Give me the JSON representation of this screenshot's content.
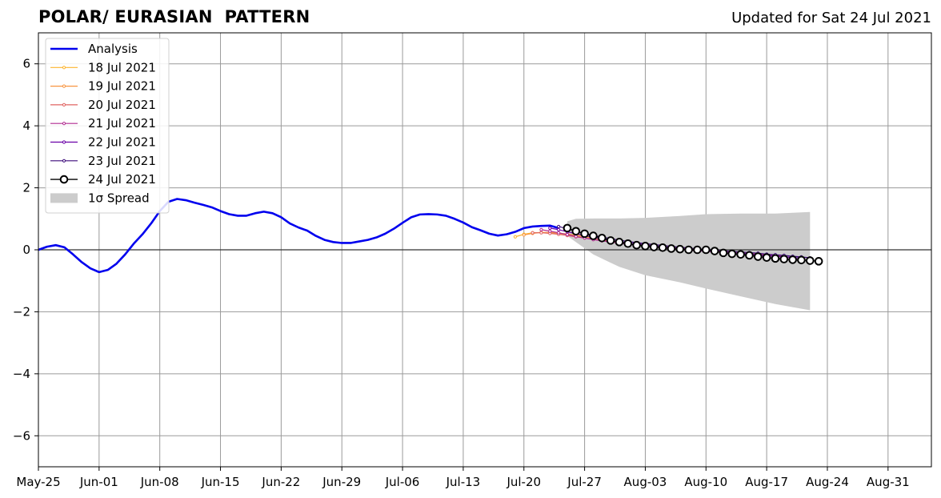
{
  "header": {
    "title": "POLAR/ EURASIAN  PATTERN",
    "updated": "Updated for Sat 24 Jul 2021"
  },
  "chart_data": {
    "type": "line",
    "title": "POLAR/ EURASIAN  PATTERN",
    "xlabel": "",
    "ylabel": "",
    "xlim": [
      "2021-05-25",
      "2021-09-05"
    ],
    "ylim": [
      -7,
      7
    ],
    "grid": true,
    "legend_position": "top-left",
    "x_ticks": [
      "May-25",
      "Jun-01",
      "Jun-08",
      "Jun-15",
      "Jun-22",
      "Jun-29",
      "Jul-06",
      "Jul-13",
      "Jul-20",
      "Jul-27",
      "Aug-03",
      "Aug-10",
      "Aug-17",
      "Aug-24",
      "Aug-31"
    ],
    "y_ticks": [
      "6",
      "4",
      "2",
      "0",
      "−2",
      "−4",
      "−6"
    ],
    "analysis": {
      "name": "Analysis",
      "color": "#0000ee",
      "x": [
        "2021-05-25",
        "2021-05-26",
        "2021-05-27",
        "2021-05-28",
        "2021-05-29",
        "2021-05-30",
        "2021-05-31",
        "2021-06-01",
        "2021-06-02",
        "2021-06-03",
        "2021-06-04",
        "2021-06-05",
        "2021-06-06",
        "2021-06-07",
        "2021-06-08",
        "2021-06-09",
        "2021-06-10",
        "2021-06-11",
        "2021-06-12",
        "2021-06-13",
        "2021-06-14",
        "2021-06-15",
        "2021-06-16",
        "2021-06-17",
        "2021-06-18",
        "2021-06-19",
        "2021-06-20",
        "2021-06-21",
        "2021-06-22",
        "2021-06-23",
        "2021-06-24",
        "2021-06-25",
        "2021-06-26",
        "2021-06-27",
        "2021-06-28",
        "2021-06-29",
        "2021-06-30",
        "2021-07-01",
        "2021-07-02",
        "2021-07-03",
        "2021-07-04",
        "2021-07-05",
        "2021-07-06",
        "2021-07-07",
        "2021-07-08",
        "2021-07-09",
        "2021-07-10",
        "2021-07-11",
        "2021-07-12",
        "2021-07-13",
        "2021-07-14",
        "2021-07-15",
        "2021-07-16",
        "2021-07-17",
        "2021-07-18",
        "2021-07-19",
        "2021-07-20",
        "2021-07-21",
        "2021-07-22",
        "2021-07-23",
        "2021-07-24"
      ],
      "y": [
        0.0,
        0.1,
        0.15,
        0.08,
        -0.15,
        -0.4,
        -0.6,
        -0.72,
        -0.65,
        -0.45,
        -0.15,
        0.2,
        0.5,
        0.85,
        1.25,
        1.55,
        1.64,
        1.6,
        1.52,
        1.45,
        1.37,
        1.25,
        1.15,
        1.1,
        1.1,
        1.18,
        1.23,
        1.18,
        1.05,
        0.85,
        0.72,
        0.62,
        0.45,
        0.32,
        0.25,
        0.22,
        0.22,
        0.27,
        0.32,
        0.4,
        0.52,
        0.68,
        0.87,
        1.05,
        1.14,
        1.15,
        1.14,
        1.1,
        1.0,
        0.88,
        0.73,
        0.63,
        0.52,
        0.46,
        0.5,
        0.58,
        0.7,
        0.75,
        0.77,
        0.78,
        0.7
      ]
    },
    "forecast_series": [
      {
        "name": "18 Jul 2021",
        "color": "#fdb42f",
        "start": "2021-07-19",
        "values": [
          0.42,
          0.5,
          0.55,
          0.56,
          0.55,
          0.53,
          0.5,
          0.46,
          0.42,
          0.38,
          0.33,
          0.28,
          0.24,
          0.2,
          0.17,
          0.14,
          0.11,
          0.08,
          0.06,
          0.03,
          0.01,
          -0.01,
          -0.03,
          -0.05,
          -0.07,
          -0.09,
          -0.11,
          -0.13,
          -0.15,
          -0.17
        ]
      },
      {
        "name": "19 Jul 2021",
        "color": "#f89540",
        "start": "2021-07-20",
        "values": [
          0.48,
          0.53,
          0.56,
          0.56,
          0.54,
          0.51,
          0.47,
          0.43,
          0.39,
          0.34,
          0.3,
          0.26,
          0.22,
          0.19,
          0.16,
          0.13,
          0.1,
          0.07,
          0.05,
          0.03,
          0.01,
          -0.01,
          -0.03,
          -0.06,
          -0.08,
          -0.1,
          -0.12,
          -0.14,
          -0.17,
          -0.2
        ]
      },
      {
        "name": "20 Jul 2021",
        "color": "#e16462",
        "start": "2021-07-21",
        "values": [
          0.55,
          0.55,
          0.53,
          0.5,
          0.46,
          0.42,
          0.38,
          0.34,
          0.3,
          0.27,
          0.23,
          0.2,
          0.17,
          0.14,
          0.11,
          0.08,
          0.06,
          0.03,
          0.01,
          -0.01,
          -0.03,
          -0.05,
          -0.07,
          -0.09,
          -0.11,
          -0.13,
          -0.15,
          -0.17,
          -0.19,
          -0.21
        ]
      },
      {
        "name": "21 Jul 2021",
        "color": "#b12a90",
        "start": "2021-07-22",
        "values": [
          0.65,
          0.6,
          0.55,
          0.49,
          0.43,
          0.38,
          0.33,
          0.29,
          0.25,
          0.21,
          0.18,
          0.15,
          0.12,
          0.09,
          0.06,
          0.03,
          0.01,
          -0.01,
          -0.03,
          -0.05,
          -0.07,
          -0.09,
          -0.11,
          -0.13,
          -0.15,
          -0.17,
          -0.19,
          -0.21,
          -0.23,
          -0.25
        ]
      },
      {
        "name": "22 Jul 2021",
        "color": "#6a00a8",
        "start": "2021-07-23",
        "values": [
          0.7,
          0.65,
          0.58,
          0.52,
          0.46,
          0.4,
          0.35,
          0.3,
          0.26,
          0.22,
          0.19,
          0.16,
          0.13,
          0.1,
          0.07,
          0.04,
          0.02,
          -0.01,
          -0.03,
          -0.05,
          -0.07,
          -0.09,
          -0.11,
          -0.13,
          -0.16,
          -0.18,
          -0.2,
          -0.23,
          -0.25,
          -0.27
        ]
      },
      {
        "name": "23 Jul 2021",
        "color": "#3b0a7a",
        "start": "2021-07-24",
        "values": [
          0.75,
          0.68,
          0.6,
          0.53,
          0.47,
          0.41,
          0.36,
          0.31,
          0.27,
          0.23,
          0.2,
          0.17,
          0.14,
          0.11,
          0.08,
          0.06,
          0.03,
          0.01,
          -0.01,
          -0.03,
          -0.05,
          -0.07,
          -0.09,
          -0.11,
          -0.14,
          -0.16,
          -0.18,
          -0.21,
          -0.23,
          -0.26
        ]
      },
      {
        "name": "24 Jul 2021",
        "color": "#000000",
        "start": "2021-07-25",
        "markers": "open-circle",
        "values": [
          0.7,
          0.6,
          0.52,
          0.45,
          0.38,
          0.3,
          0.25,
          0.2,
          0.15,
          0.12,
          0.09,
          0.07,
          0.04,
          0.02,
          0.0,
          0.0,
          0.0,
          -0.04,
          -0.1,
          -0.13,
          -0.15,
          -0.18,
          -0.22,
          -0.25,
          -0.28,
          -0.3,
          -0.32,
          -0.33,
          -0.35,
          -0.37
        ]
      }
    ],
    "spread": {
      "name": "1σ Spread",
      "color": "#cccccc",
      "x": [
        "2021-07-25",
        "2021-07-26",
        "2021-07-28",
        "2021-07-31",
        "2021-08-03",
        "2021-08-07",
        "2021-08-10",
        "2021-08-14",
        "2021-08-18",
        "2021-08-22"
      ],
      "upper": [
        0.92,
        1.0,
        1.01,
        1.01,
        1.03,
        1.09,
        1.15,
        1.17,
        1.17,
        1.22
      ],
      "lower": [
        0.45,
        0.25,
        -0.15,
        -0.55,
        -0.82,
        -1.05,
        -1.25,
        -1.5,
        -1.75,
        -1.95
      ]
    },
    "legend": [
      "Analysis",
      "18 Jul 2021",
      "19 Jul 2021",
      "20 Jul 2021",
      "21 Jul 2021",
      "22 Jul 2021",
      "23 Jul 2021",
      "24 Jul 2021",
      "1σ Spread"
    ]
  }
}
